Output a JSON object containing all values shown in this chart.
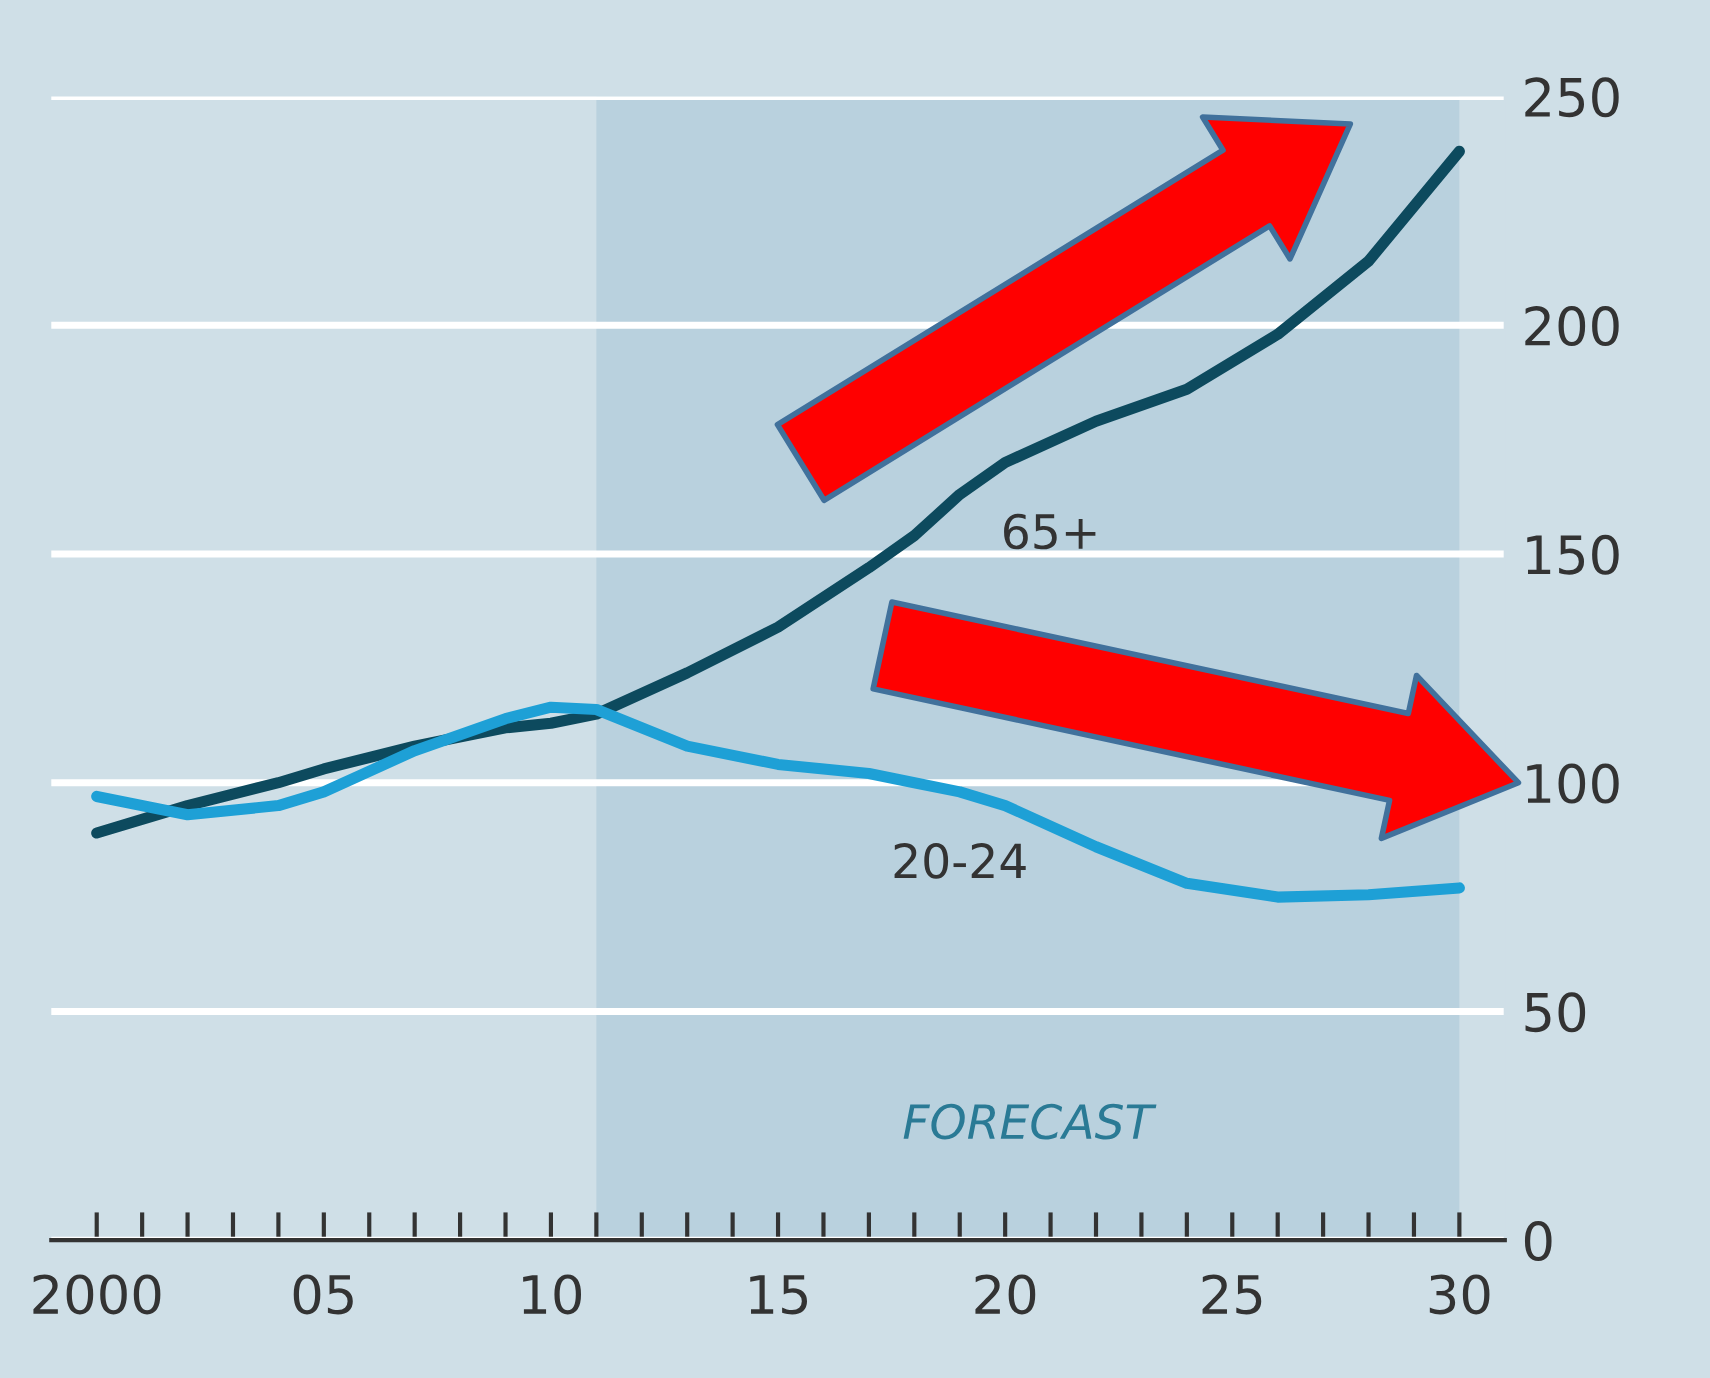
{
  "chart_data": {
    "type": "line",
    "x": [
      2000,
      2002,
      2004,
      2005,
      2007,
      2009,
      2010,
      2011,
      2013,
      2015,
      2017,
      2018,
      2019,
      2020,
      2022,
      2024,
      2026,
      2028,
      2030
    ],
    "series": [
      {
        "name": "65+",
        "color": "#0d4a5e",
        "values": [
          89,
          95,
          100,
          103,
          108,
          112,
          113,
          115,
          124,
          134,
          147,
          154,
          163,
          170,
          179,
          186,
          198,
          214,
          238
        ]
      },
      {
        "name": "20-24",
        "color": "#1ea0d6",
        "values": [
          97,
          93,
          95,
          98,
          107,
          114,
          116.5,
          116,
          108,
          104,
          102,
          100,
          98,
          95,
          86,
          78,
          75,
          75.5,
          77
        ]
      }
    ],
    "xlim": [
      1999,
      2031
    ],
    "ylim": [
      0,
      250
    ],
    "xticks": [
      2000,
      {
        "value": 2001,
        "label": null
      },
      {
        "value": 2002,
        "label": null
      },
      {
        "value": 2003,
        "label": null
      },
      {
        "value": 2004,
        "label": null
      },
      {
        "value": 2005,
        "label": "05"
      },
      {
        "value": 2006,
        "label": null
      },
      {
        "value": 2007,
        "label": null
      },
      {
        "value": 2008,
        "label": null
      },
      {
        "value": 2009,
        "label": null
      },
      {
        "value": 2010,
        "label": "10"
      },
      {
        "value": 2011,
        "label": null
      },
      {
        "value": 2012,
        "label": null
      },
      {
        "value": 2013,
        "label": null
      },
      {
        "value": 2014,
        "label": null
      },
      {
        "value": 2015,
        "label": "15"
      },
      {
        "value": 2016,
        "label": null
      },
      {
        "value": 2017,
        "label": null
      },
      {
        "value": 2018,
        "label": null
      },
      {
        "value": 2019,
        "label": null
      },
      {
        "value": 2020,
        "label": "20"
      },
      {
        "value": 2021,
        "label": null
      },
      {
        "value": 2022,
        "label": null
      },
      {
        "value": 2023,
        "label": null
      },
      {
        "value": 2024,
        "label": null
      },
      {
        "value": 2025,
        "label": "25"
      },
      {
        "value": 2026,
        "label": null
      },
      {
        "value": 2027,
        "label": null
      },
      {
        "value": 2028,
        "label": null
      },
      {
        "value": 2029,
        "label": null
      },
      {
        "value": 2030,
        "label": "30"
      }
    ],
    "yticks": [
      0,
      50,
      100,
      150,
      200,
      250
    ],
    "grid": "y",
    "legend": false,
    "marker": "none",
    "line_style": "solid",
    "bands": [
      {
        "axis": "x",
        "from": 2011,
        "to": 2030,
        "label": "FORECAST",
        "color": "#b9d1de"
      }
    ]
  }
}
